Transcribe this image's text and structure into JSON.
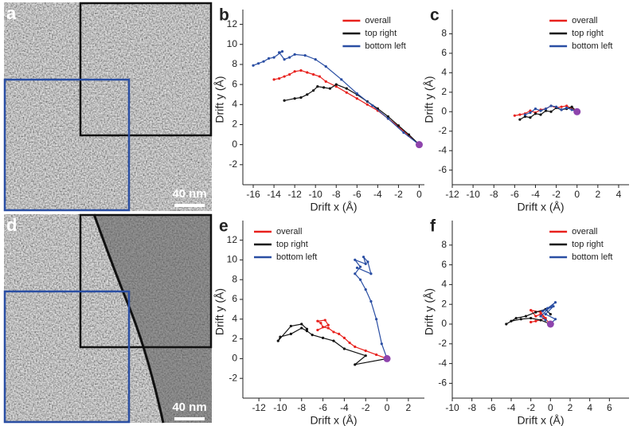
{
  "micrographs": [
    {
      "label": "a",
      "scale_bar": "40 nm"
    },
    {
      "label": "d",
      "scale_bar": "40 nm"
    }
  ],
  "chart_data": [
    {
      "type": "line",
      "label": "b",
      "xlabel": "Drift x (Å)",
      "ylabel": "Drift y (Å)",
      "xlim": [
        -17,
        0.5
      ],
      "xticks": [
        -16,
        -14,
        -12,
        -10,
        -8,
        -6,
        -4,
        -2,
        0
      ],
      "ylim": [
        -4,
        13
      ],
      "yticks": [
        -2,
        0,
        2,
        4,
        6,
        8,
        10,
        12
      ],
      "legend": "upper right",
      "origin_color": "#8e44ad",
      "series": [
        {
          "name": "overall",
          "color": "#e8211d",
          "x": [
            0,
            -1,
            -2,
            -3,
            -4,
            -5,
            -6,
            -7,
            -8,
            -9,
            -9.6,
            -10.2,
            -10.8,
            -11.4,
            -12,
            -12.5,
            -13,
            -13.5,
            -14
          ],
          "values": [
            0,
            0.9,
            1.8,
            2.6,
            3.4,
            4.0,
            4.6,
            5.2,
            5.8,
            6.3,
            6.8,
            7.0,
            7.2,
            7.4,
            7.3,
            7.0,
            6.8,
            6.6,
            6.5
          ]
        },
        {
          "name": "top right",
          "color": "#111111",
          "x": [
            0,
            -1,
            -2,
            -3,
            -4,
            -5,
            -6,
            -7,
            -8,
            -8.6,
            -9.2,
            -9.8,
            -10.2,
            -10.8,
            -11.4,
            -12,
            -13
          ],
          "values": [
            0,
            1,
            1.9,
            2.8,
            3.6,
            4.3,
            5,
            5.6,
            6,
            5.6,
            5.7,
            5.8,
            5.4,
            5,
            4.7,
            4.6,
            4.4
          ]
        },
        {
          "name": "bottom left",
          "color": "#2a4ea3",
          "x": [
            0,
            -1.5,
            -3,
            -4.5,
            -6,
            -7.5,
            -9,
            -10,
            -11,
            -12,
            -12.5,
            -13,
            -13.5,
            -13.2,
            -14,
            -14.5,
            -15,
            -15.5,
            -16
          ],
          "values": [
            0,
            1.2,
            2.6,
            3.9,
            5.1,
            6.5,
            7.8,
            8.5,
            8.9,
            9.0,
            8.7,
            8.5,
            9.2,
            9.3,
            8.7,
            8.6,
            8.3,
            8.1,
            7.9
          ]
        }
      ]
    },
    {
      "type": "line",
      "label": "c",
      "xlabel": "Drift x (Å)",
      "ylabel": "Drift y (Å)",
      "xlim": [
        -12,
        5
      ],
      "xticks": [
        -12,
        -10,
        -8,
        -6,
        -4,
        -2,
        0,
        2,
        4
      ],
      "ylim": [
        -7.5,
        10
      ],
      "yticks": [
        -6,
        -4,
        -2,
        0,
        2,
        4,
        6,
        8
      ],
      "legend": "upper right",
      "origin_color": "#8e44ad",
      "series": [
        {
          "name": "overall",
          "color": "#e8211d",
          "x": [
            0,
            -0.5,
            -1,
            -1.5,
            -2,
            -2.5,
            -3,
            -3.5,
            -4,
            -4.5,
            -5,
            -5.5,
            -6
          ],
          "values": [
            0,
            0.3,
            0.6,
            0.5,
            0.4,
            0.6,
            0.3,
            0.2,
            -0.1,
            0.1,
            -0.2,
            -0.3,
            -0.4
          ]
        },
        {
          "name": "top right",
          "color": "#111111",
          "x": [
            0,
            -0.5,
            -1,
            -1.5,
            -2,
            -2.5,
            -3,
            -3.5,
            -4,
            -4.5,
            -5,
            -5.5
          ],
          "values": [
            0,
            0.5,
            0.3,
            0.2,
            0.4,
            0,
            0.1,
            -0.3,
            -0.2,
            -0.6,
            -0.5,
            -0.8
          ]
        },
        {
          "name": "bottom left",
          "color": "#2a4ea3",
          "x": [
            0,
            -0.5,
            -1,
            -1.5,
            -2,
            -2.5,
            -3,
            -3.5,
            -4,
            -4.5,
            -5
          ],
          "values": [
            0,
            0.2,
            0.4,
            0.2,
            0.5,
            0.6,
            0.3,
            0.1,
            0.3,
            -0.1,
            -0.3
          ]
        }
      ]
    },
    {
      "type": "line",
      "label": "e",
      "xlabel": "Drift x (Å)",
      "ylabel": "Drift y (Å)",
      "xlim": [
        -13.5,
        3.5
      ],
      "xticks": [
        -12,
        -10,
        -8,
        -6,
        -4,
        -2,
        0,
        2
      ],
      "ylim": [
        -4,
        13.5
      ],
      "yticks": [
        -2,
        0,
        2,
        4,
        6,
        8,
        10,
        12
      ],
      "legend": "upper left",
      "origin_color": "#8e44ad",
      "series": [
        {
          "name": "overall",
          "color": "#e8211d",
          "x": [
            0,
            -1,
            -2,
            -3,
            -3.5,
            -4,
            -4.5,
            -5,
            -5.5,
            -6,
            -6.2,
            -6.5,
            -5.8,
            -5.5,
            -6.5
          ],
          "values": [
            0,
            0.4,
            0.8,
            1.2,
            1.6,
            2.1,
            2.5,
            2.7,
            3.1,
            3.2,
            3.6,
            3.8,
            3.9,
            3.4,
            2.9
          ]
        },
        {
          "name": "top right",
          "color": "#111111",
          "x": [
            0,
            -3,
            -2,
            -4,
            -5,
            -6,
            -7,
            -7.5,
            -8,
            -9,
            -10,
            -10.2,
            -9,
            -8,
            -7.5
          ],
          "values": [
            0,
            -0.6,
            0.3,
            1,
            1.8,
            2.1,
            2.4,
            2.8,
            3.1,
            2.5,
            2.2,
            1.8,
            3.3,
            3.5,
            3.0
          ]
        },
        {
          "name": "bottom left",
          "color": "#2a4ea3",
          "x": [
            0,
            -0.5,
            -1,
            -1.5,
            -2,
            -2.5,
            -3,
            -2.5,
            -3,
            -2,
            -2.2,
            -1.8,
            -1.5,
            -2.8
          ],
          "values": [
            0,
            1.5,
            4,
            5.8,
            7,
            8,
            8.6,
            9.3,
            10,
            9.6,
            10.3,
            9.8,
            8.6,
            9.2
          ]
        }
      ]
    },
    {
      "type": "line",
      "label": "f",
      "xlabel": "Drift x (Å)",
      "ylabel": "Drift y (Å)",
      "xlim": [
        -10,
        8
      ],
      "xticks": [
        -10,
        -8,
        -6,
        -4,
        -2,
        0,
        2,
        4,
        6
      ],
      "ylim": [
        -7.5,
        10
      ],
      "yticks": [
        -6,
        -4,
        -2,
        0,
        2,
        4,
        6,
        8
      ],
      "legend": "upper right",
      "origin_color": "#8e44ad",
      "series": [
        {
          "name": "overall",
          "color": "#e8211d",
          "x": [
            0,
            -0.5,
            -1,
            -1.5,
            -2,
            -1,
            -0.5,
            -1.5,
            -2
          ],
          "values": [
            0,
            0.5,
            1,
            0.8,
            1.4,
            1.2,
            0.6,
            0.3,
            0.2
          ]
        },
        {
          "name": "top right",
          "color": "#111111",
          "x": [
            0,
            -1,
            -2,
            -3,
            -4,
            -4.5,
            -3.5,
            -2.5,
            -1.5,
            -0.5,
            0
          ],
          "values": [
            0,
            0.4,
            0.6,
            0.5,
            0.3,
            0,
            0.6,
            0.8,
            1.2,
            1.5,
            1
          ]
        },
        {
          "name": "bottom left",
          "color": "#2a4ea3",
          "x": [
            0,
            0.5,
            -0.5,
            0.3,
            -0.8,
            -0.3,
            0.5,
            -1,
            -0.5
          ],
          "values": [
            0,
            0.5,
            1,
            1.8,
            1.3,
            1.6,
            2.2,
            0.8,
            0.4
          ]
        }
      ]
    }
  ]
}
